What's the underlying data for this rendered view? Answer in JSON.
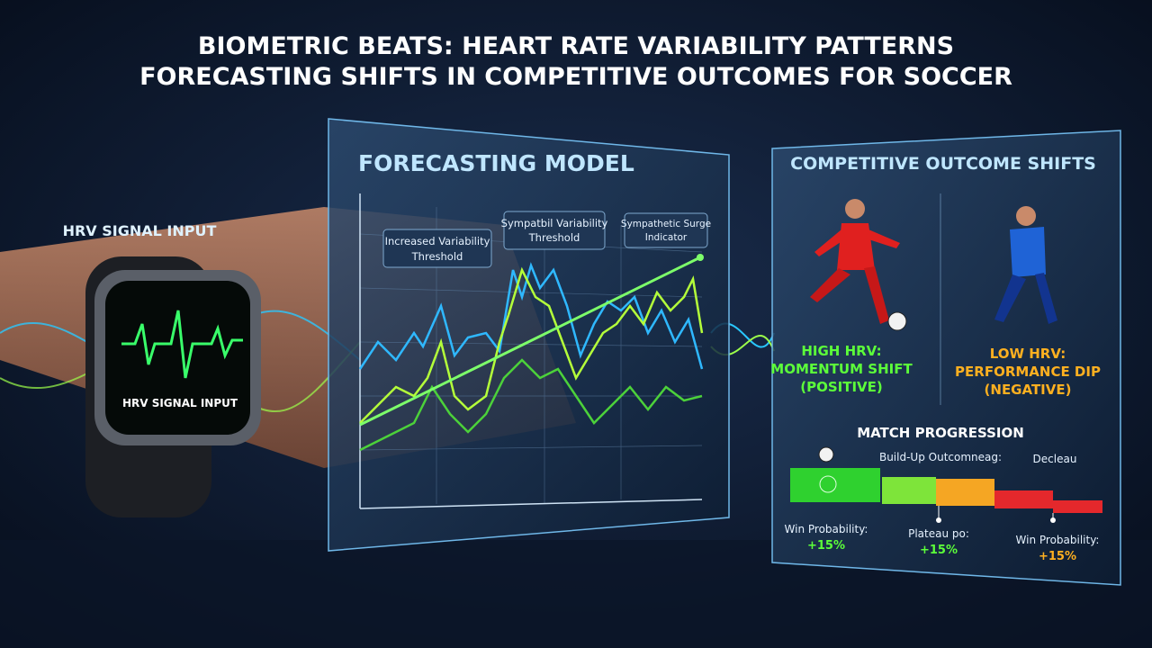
{
  "header": {
    "title_lines": [
      "BIOMETRIC BEATS: HEART RATE VARIABILITY PATTERNS",
      "FORECASTING SHIFTS IN COMPETITIVE OUTCOMES FOR SOCCER"
    ]
  },
  "input": {
    "label": "HRV SIGNAL INPUT",
    "watch_label": "HRV SIGNAL INPUT"
  },
  "model": {
    "title": "FORECASTING MODEL",
    "annotations": [
      {
        "lines": [
          "Increased Variability",
          "Threshold"
        ]
      },
      {
        "lines": [
          "Sympatbil Variability",
          "Threshold"
        ]
      },
      {
        "lines": [
          "Sympathetic Surge",
          "Indicator"
        ]
      }
    ]
  },
  "outcomes": {
    "title": "COMPETITIVE OUTCOME SHIFTS",
    "high": {
      "lines": [
        "HIGH HRV:",
        "MOMENTUM SHIFT",
        "(POSITIVE)"
      ]
    },
    "low": {
      "lines": [
        "LOW HRV:",
        "PERFORMANCE DIP",
        "(NEGATIVE)"
      ]
    },
    "progression": {
      "title": "MATCH PROGRESSION",
      "phase_labels": [
        "Build-Up Outcomneag:",
        "Decleau"
      ],
      "stats": [
        {
          "label": "Win Probability:",
          "value": "+15%"
        },
        {
          "label": "Plateau po:",
          "value": "+15%"
        },
        {
          "label": "Win Probability:",
          "value": "+15%"
        }
      ]
    }
  }
}
